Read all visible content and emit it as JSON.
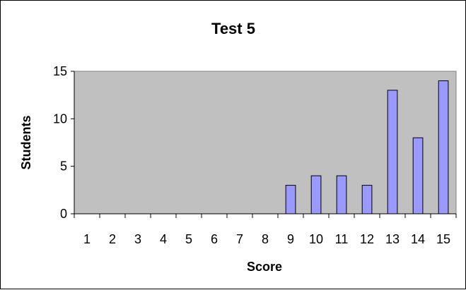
{
  "chart_data": {
    "type": "bar",
    "title": "Test 5",
    "xlabel": "Score",
    "ylabel": "Students",
    "categories": [
      "1",
      "2",
      "3",
      "4",
      "5",
      "6",
      "7",
      "8",
      "9",
      "10",
      "11",
      "12",
      "13",
      "14",
      "15"
    ],
    "values": [
      0,
      0,
      0,
      0,
      0,
      0,
      0,
      0,
      3,
      4,
      4,
      3,
      13,
      8,
      14
    ],
    "ylim": [
      0,
      15
    ],
    "yticks": [
      0,
      5,
      10,
      15
    ],
    "grid": false,
    "legend": "none",
    "colors": {
      "bar_fill": "#9999ff",
      "bar_stroke": "#000000",
      "plot_background": "#c0c0c0",
      "page_background": "#ffffff"
    }
  }
}
